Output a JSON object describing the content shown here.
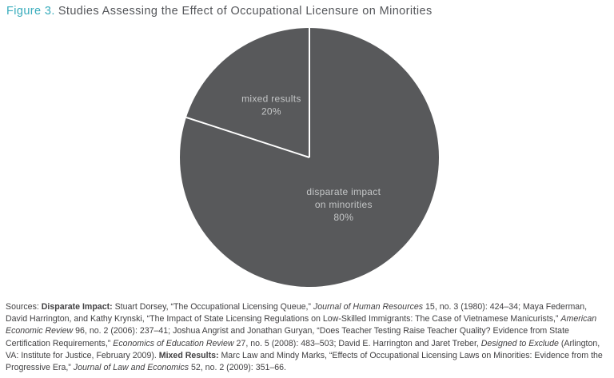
{
  "title": {
    "figure_label": "Figure 3.",
    "text": "Studies Assessing the Effect of Occupational Licensure on Minorities"
  },
  "chart_data": {
    "type": "pie",
    "title": "Studies Assessing the Effect of Occupational Licensure on Minorities",
    "categories": [
      "disparate impact on minorities",
      "mixed results"
    ],
    "values": [
      80,
      20
    ],
    "unit": "percent",
    "start_angle": "12 o'clock",
    "direction": "clockwise",
    "legend": "none",
    "slices": [
      {
        "category": "disparate impact on minorities",
        "value": 80,
        "label_lines": [
          "disparate impact",
          "on minorities"
        ],
        "pct_label": "80%"
      },
      {
        "category": "mixed results",
        "value": 20,
        "label_lines": [
          "mixed results"
        ],
        "pct_label": "20%"
      }
    ],
    "colors": {
      "slice_fill": "#58595B",
      "divider": "#FFFFFF",
      "label_text": "#C4C6C7"
    },
    "label_r": [
      0.45,
      0.5
    ]
  },
  "footer": {
    "segments": [
      {
        "style": "normal",
        "text": "Sources: "
      },
      {
        "style": "bold",
        "text": "Disparate Impact:"
      },
      {
        "style": "normal",
        "text": " Stuart Dorsey, “The Occupational Licensing Queue,” "
      },
      {
        "style": "italic",
        "text": "Journal of Human Resources"
      },
      {
        "style": "normal",
        "text": " 15, no. 3 (1980): 424–34; Maya Federman, David Harrington, and Kathy Krynski, “The Impact of State Licensing Regulations on Low-Skilled Immigrants: The Case of Vietnamese Manicurists,” "
      },
      {
        "style": "italic",
        "text": "American Economic Review"
      },
      {
        "style": "normal",
        "text": " 96, no. 2 (2006): 237–41; Joshua Angrist and Jonathan Guryan, “Does Teacher Testing Raise Teacher Quality? Evidence from State Certification Requirements,” "
      },
      {
        "style": "italic",
        "text": "Economics of Education Review"
      },
      {
        "style": "normal",
        "text": " 27, no. 5 (2008): 483–503; David E. Harrington and Jaret Treber, "
      },
      {
        "style": "italic",
        "text": "Designed to Exclude"
      },
      {
        "style": "normal",
        "text": " (Arlington, VA: Institute for Justice, February 2009). "
      },
      {
        "style": "bold",
        "text": "Mixed Results:"
      },
      {
        "style": "normal",
        "text": " Marc Law and Mindy Marks, “Effects of Occupational Licensing Laws on Minorities: Evidence from the Progressive Era,” "
      },
      {
        "style": "italic",
        "text": "Journal of Law and Economics"
      },
      {
        "style": "normal",
        "text": " 52, no. 2 (2009): 351–66."
      }
    ]
  }
}
